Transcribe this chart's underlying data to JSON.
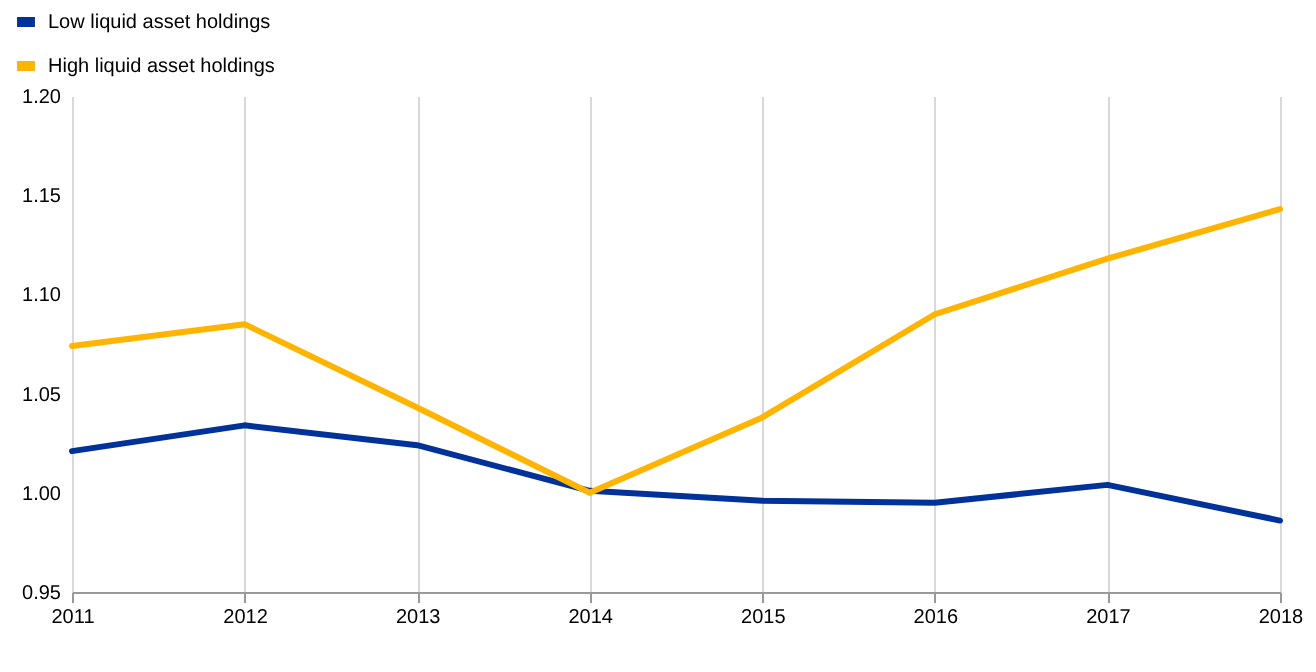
{
  "chart_data": {
    "type": "line",
    "categories": [
      "2011",
      "2012",
      "2013",
      "2014",
      "2015",
      "2016",
      "2017",
      "2018"
    ],
    "series": [
      {
        "name": "Low liquid asset holdings",
        "color": "#003299",
        "values": [
          1.021,
          1.034,
          1.024,
          1.001,
          0.996,
          0.995,
          1.004,
          0.986
        ]
      },
      {
        "name": "High liquid asset holdings",
        "color": "#ffb400",
        "values": [
          1.074,
          1.085,
          1.043,
          1.0,
          1.038,
          1.09,
          1.118,
          1.143
        ]
      }
    ],
    "ylim": [
      0.95,
      1.2
    ],
    "yticks": [
      0.95,
      {
        "value": 1.0,
        "label": "1.00"
      },
      1.05,
      {
        "value": 1.1,
        "label": "1.10"
      },
      1.15,
      {
        "value": 1.2,
        "label": "1.20"
      }
    ],
    "grid": "x",
    "legend": "top left",
    "marker": "none",
    "line_style": "solid"
  }
}
